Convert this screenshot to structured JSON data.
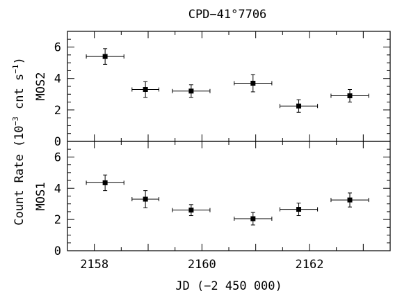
{
  "chart_data": {
    "type": "scatter",
    "title": "CPD−41°7706",
    "xlabel": "JD (−2 450 000)",
    "ylabel_main": "Count Rate (10",
    "ylabel_exp1": "−3",
    "ylabel_mid": " cnt s",
    "ylabel_exp2": "−1",
    "ylabel_end": ")",
    "xlim": [
      2157.5,
      2163.5
    ],
    "x_ticks": [
      "2158",
      "2160",
      "2162"
    ],
    "x_tick_values": [
      2158,
      2160,
      2162
    ],
    "panels": [
      {
        "name": "MOS2",
        "ylim": [
          0,
          7
        ],
        "y_ticks": [
          "0",
          "2",
          "4",
          "6"
        ],
        "y_tick_values": [
          0,
          2,
          4,
          6
        ],
        "points": [
          {
            "x": 2158.2,
            "xerr": 0.35,
            "y": 5.4,
            "yerr": 0.5
          },
          {
            "x": 2158.95,
            "xerr": 0.25,
            "y": 3.3,
            "yerr": 0.5
          },
          {
            "x": 2159.8,
            "xerr": 0.35,
            "y": 3.2,
            "yerr": 0.4
          },
          {
            "x": 2160.95,
            "xerr": 0.35,
            "y": 3.7,
            "yerr": 0.55
          },
          {
            "x": 2161.8,
            "xerr": 0.35,
            "y": 2.25,
            "yerr": 0.4
          },
          {
            "x": 2162.75,
            "xerr": 0.35,
            "y": 2.9,
            "yerr": 0.4
          }
        ]
      },
      {
        "name": "MOS1",
        "ylim": [
          0,
          7
        ],
        "y_ticks": [
          "0",
          "2",
          "4",
          "6"
        ],
        "y_tick_values": [
          0,
          2,
          4,
          6
        ],
        "points": [
          {
            "x": 2158.2,
            "xerr": 0.35,
            "y": 4.35,
            "yerr": 0.5
          },
          {
            "x": 2158.95,
            "xerr": 0.25,
            "y": 3.3,
            "yerr": 0.55
          },
          {
            "x": 2159.8,
            "xerr": 0.35,
            "y": 2.6,
            "yerr": 0.35
          },
          {
            "x": 2160.95,
            "xerr": 0.35,
            "y": 2.05,
            "yerr": 0.4
          },
          {
            "x": 2161.8,
            "xerr": 0.35,
            "y": 2.65,
            "yerr": 0.4
          },
          {
            "x": 2162.75,
            "xerr": 0.35,
            "y": 3.25,
            "yerr": 0.45
          }
        ]
      }
    ]
  }
}
